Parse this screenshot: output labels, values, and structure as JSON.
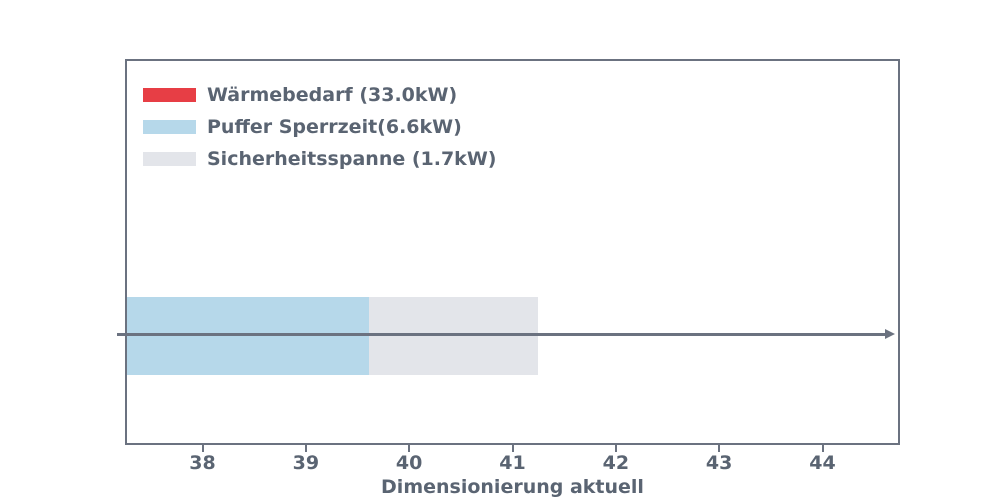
{
  "chart_data": {
    "type": "bar",
    "orientation": "horizontal",
    "stacked": true,
    "title": "",
    "xlabel": "Dimensionierung aktuell",
    "ylabel": "",
    "xlim": [
      37.25,
      44.75
    ],
    "xticks": [
      38,
      39,
      40,
      41,
      42,
      43,
      44
    ],
    "grid": false,
    "legend_position": "upper left",
    "series": [
      {
        "name": "Wärmebedarf (33.0kW)",
        "value_kw": 33.0,
        "stack_start": 0.0,
        "stack_end": 33.0,
        "color": "#e73e45"
      },
      {
        "name": "Puffer Sperrzeit(6.6kW)",
        "value_kw": 6.6,
        "stack_start": 33.0,
        "stack_end": 39.6,
        "color": "#b6d8ea"
      },
      {
        "name": "Sicherheitsspanne (1.7kW)",
        "value_kw": 1.7,
        "stack_start": 39.6,
        "stack_end": 41.25,
        "color": "#e3e5ea"
      }
    ],
    "annotations": [
      {
        "type": "arrow",
        "direction": "right",
        "at_bar_center": true,
        "from_x": 37.25,
        "to_x": 44.7
      }
    ],
    "colors": {
      "axis": "#6b7280",
      "text": "#5a6472",
      "arrow": "#6b7280",
      "background": "#ffffff"
    }
  }
}
